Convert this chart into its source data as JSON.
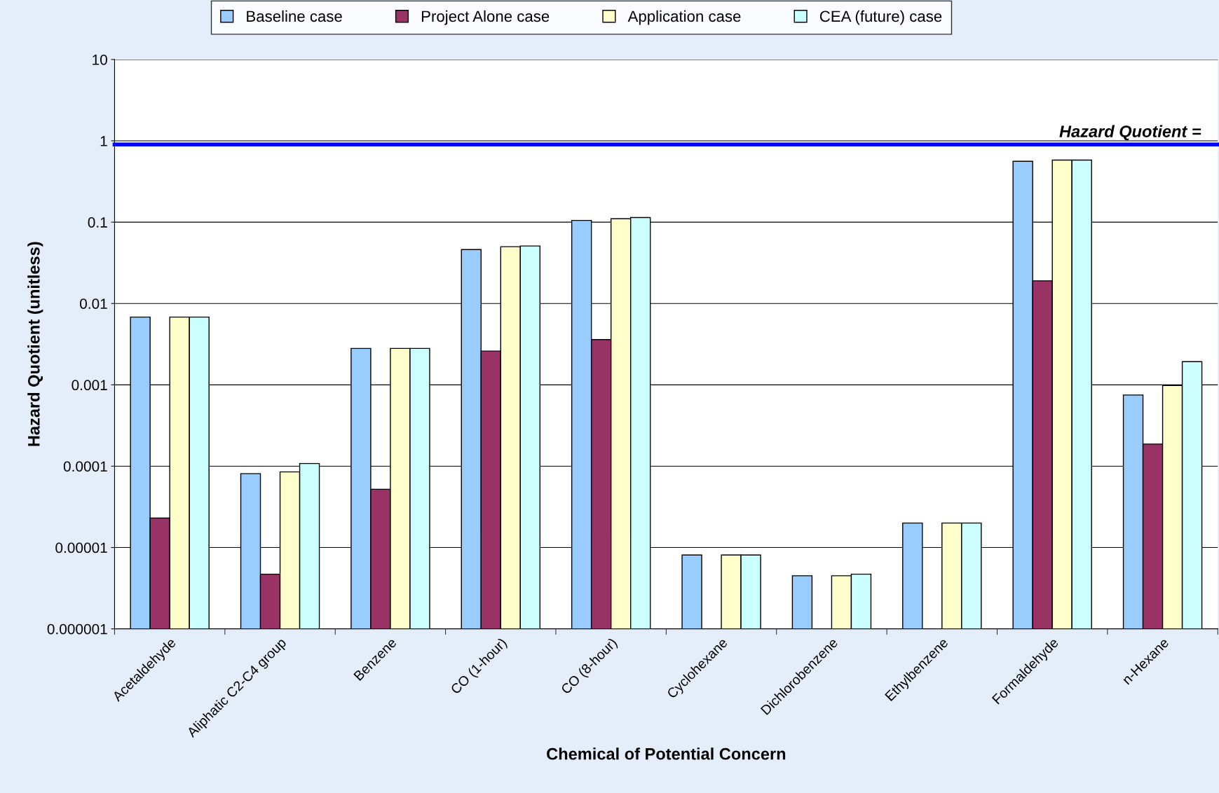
{
  "chart_data": {
    "type": "bar",
    "categories": [
      "Acetaldehyde",
      "Aliphatic C2-C4 group",
      "Benzene",
      "CO (1-hour)",
      "CO (8-hour)",
      "Cyclohexane",
      "Dichlorobenzene",
      "Ethylbenzene",
      "Formaldehyde",
      "n-Hexane"
    ],
    "series": [
      {
        "name": "Baseline case",
        "color": "#99ccff",
        "values": [
          0.0068,
          8.1e-05,
          0.0028,
          0.046,
          0.105,
          8.1e-06,
          4.5e-06,
          2e-05,
          0.56,
          0.00075
        ]
      },
      {
        "name": "Project Alone case",
        "color": "#993366",
        "values": [
          2.3e-05,
          4.7e-06,
          5.2e-05,
          0.0026,
          0.0036,
          null,
          null,
          null,
          0.019,
          0.000187
        ]
      },
      {
        "name": "Application case",
        "color": "#ffffcc",
        "values": [
          0.0068,
          8.5e-05,
          0.0028,
          0.05,
          0.11,
          8.1e-06,
          4.5e-06,
          2e-05,
          0.58,
          0.00098
        ]
      },
      {
        "name": "CEA (future) case",
        "color": "#ccffff",
        "values": [
          0.0068,
          0.000108,
          0.0028,
          0.051,
          0.114,
          8.1e-06,
          4.7e-06,
          2e-05,
          0.58,
          0.00193
        ]
      }
    ],
    "xlabel": "Chemical of Potential Concern",
    "ylabel": "Hazard Quotient (unitless)",
    "log": "y",
    "ylim": [
      1e-06,
      10
    ],
    "yticks": [
      {
        "value": 1e-06,
        "label": "0.000001"
      },
      {
        "value": 1e-05,
        "label": "0.00001"
      },
      {
        "value": 0.0001,
        "label": "0.0001"
      },
      {
        "value": 0.001,
        "label": "0.001"
      },
      {
        "value": 0.01,
        "label": "0.01"
      },
      {
        "value": 0.1,
        "label": "0.1"
      },
      {
        "value": 1,
        "label": "1"
      },
      {
        "value": 10,
        "label": "10"
      }
    ],
    "ref_lines": [
      {
        "axis": "y",
        "value": 0.9,
        "label": "Hazard Quotient =",
        "color": "#0000ff",
        "line_style": "solid"
      }
    ],
    "grid": "y",
    "legend": "top"
  }
}
